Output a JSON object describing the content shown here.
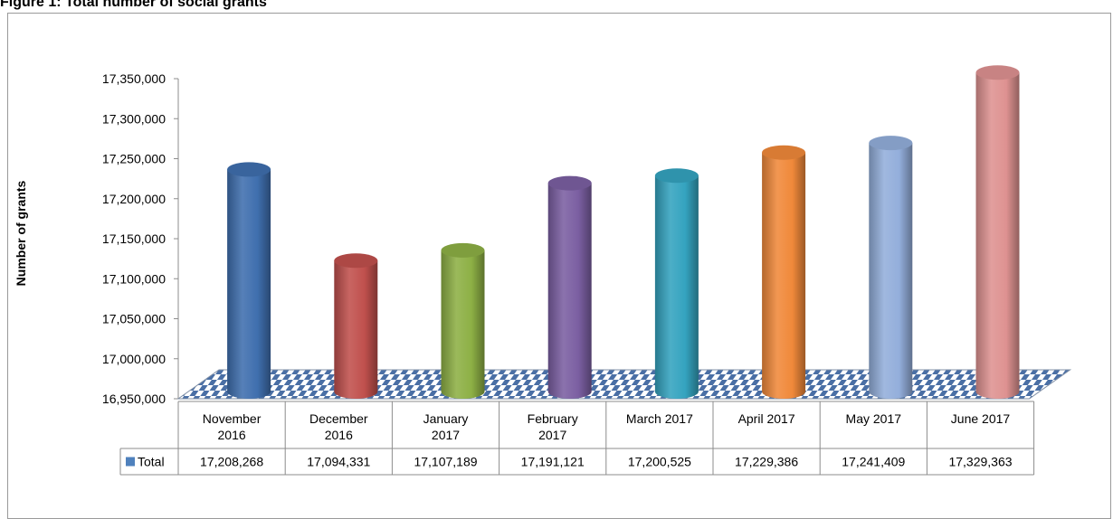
{
  "figure_title": "Figure 1: Total number of social grants",
  "chart_data": {
    "type": "bar",
    "title": "Figure 1: Total number of social grants",
    "ylabel": "Number of grants",
    "xlabel": "",
    "ylim": [
      16950000,
      17350000
    ],
    "y_ticks": [
      "17,350,000",
      "17,300,000",
      "17,250,000",
      "17,200,000",
      "17,150,000",
      "17,100,000",
      "17,050,000",
      "17,000,000",
      "16,950,000"
    ],
    "y_tick_values": [
      17350000,
      17300000,
      17250000,
      17200000,
      17150000,
      17100000,
      17050000,
      17000000,
      16950000
    ],
    "categories": [
      [
        "November",
        "2016"
      ],
      [
        "December",
        "2016"
      ],
      [
        "January",
        "2017"
      ],
      [
        "February",
        "2017"
      ],
      [
        "March 2017"
      ],
      [
        "April 2017"
      ],
      [
        "May 2017"
      ],
      [
        "June 2017"
      ]
    ],
    "series": [
      {
        "name": "Total",
        "values": [
          17208268,
          17094331,
          17107189,
          17191121,
          17200525,
          17229386,
          17241409,
          17329363
        ],
        "value_labels": [
          "17,208,268",
          "17,094,331",
          "17,107,189",
          "17,191,121",
          "17,200,525",
          "17,229,386",
          "17,241,409",
          "17,329,363"
        ]
      }
    ],
    "bar_colors": [
      "#3f6fae",
      "#c0504d",
      "#8db045",
      "#7b5fa2",
      "#34a3bf",
      "#f0893a",
      "#93aedb",
      "#de9291"
    ],
    "legend_key_color": "#4f81bd",
    "floor_pattern_colors": [
      "#4a6fa5",
      "#ffffff"
    ],
    "grid": false,
    "legend": "data-table"
  }
}
